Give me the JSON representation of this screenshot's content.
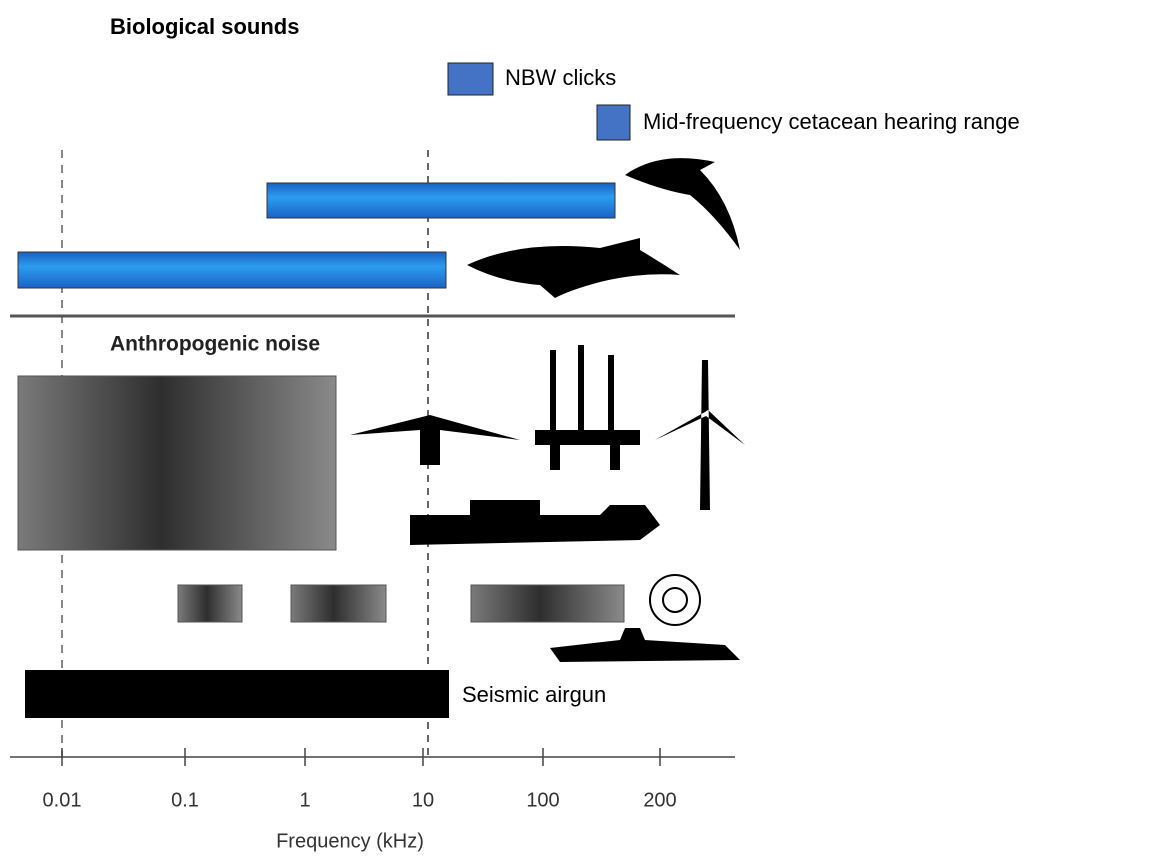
{
  "title": "Biological sounds",
  "legend": [
    "NBW clicks",
    "Mid-frequency cetacean hearing range"
  ],
  "section": "Anthropogenic noise",
  "airgun": "Seismic airgun",
  "axis": {
    "ticks": [
      "0.01",
      "0.1",
      "1",
      "10",
      "100",
      "200"
    ],
    "label": "Frequency (kHz)"
  }
}
